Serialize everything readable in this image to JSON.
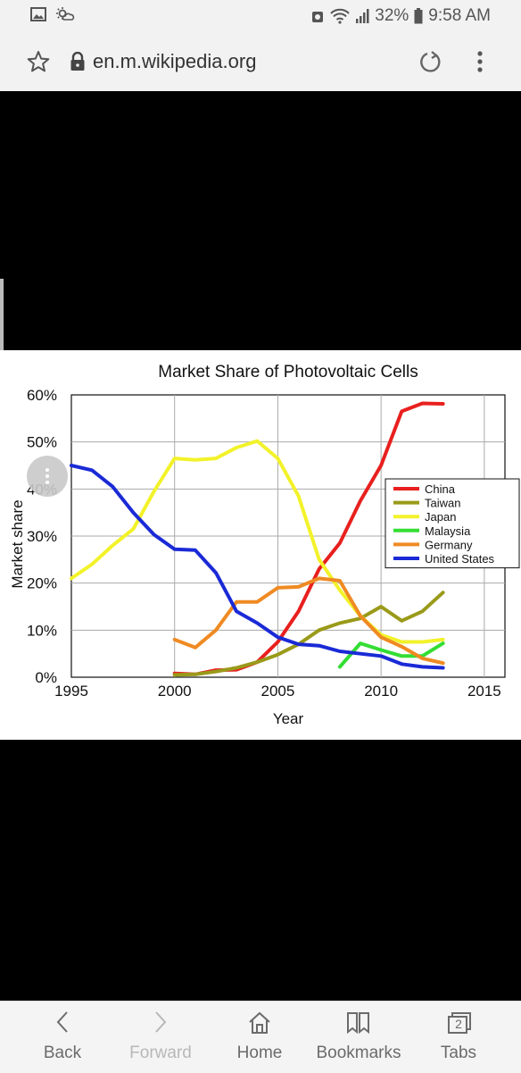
{
  "status": {
    "battery": "32%",
    "time": "9:58 AM"
  },
  "browser": {
    "url": "en.m.wikipedia.org"
  },
  "nav": {
    "back": "Back",
    "forward": "Forward",
    "home": "Home",
    "bookmarks": "Bookmarks",
    "tabs": "Tabs",
    "tab_count": "2"
  },
  "colors": {
    "china": "#e8201e",
    "taiwan": "#9a9a1a",
    "japan": "#f2f22a",
    "malaysia": "#33dd33",
    "germany": "#ef8a22",
    "united_states": "#1a2ad6"
  },
  "chart_data": {
    "type": "line",
    "title": "Market Share of Photovoltaic Cells",
    "xlabel": "Year",
    "ylabel": "Market share",
    "xlim": [
      1995,
      2016
    ],
    "ylim": [
      0,
      60
    ],
    "x_ticks": [
      "1995",
      "2000",
      "2005",
      "2010",
      "2015"
    ],
    "y_ticks": [
      "0%",
      "10%",
      "20%",
      "30%",
      "40%",
      "50%",
      "60%"
    ],
    "grid": true,
    "legend_position": "right",
    "series": [
      {
        "name": "China",
        "color": "#e8201e",
        "x": [
          2000,
          2001,
          2002,
          2003,
          2004,
          2005,
          2006,
          2007,
          2008,
          2009,
          2010,
          2011,
          2012,
          2013
        ],
        "y": [
          0.8,
          0.6,
          1.5,
          1.6,
          3.2,
          7.5,
          14,
          23,
          28.5,
          37.5,
          45,
          56.5,
          58.2,
          58.1
        ]
      },
      {
        "name": "Taiwan",
        "color": "#9a9a1a",
        "x": [
          2000,
          2001,
          2002,
          2003,
          2004,
          2005,
          2006,
          2007,
          2008,
          2009,
          2010,
          2011,
          2012,
          2013
        ],
        "y": [
          0.5,
          0.6,
          1.2,
          2.0,
          3.2,
          4.8,
          7.0,
          10.0,
          11.5,
          12.5,
          15.0,
          12.0,
          14.0,
          18.0
        ]
      },
      {
        "name": "Japan",
        "color": "#f2f22a",
        "x": [
          1995,
          1996,
          1997,
          1998,
          1999,
          2000,
          2001,
          2002,
          2003,
          2004,
          2005,
          2006,
          2007,
          2008,
          2009,
          2010,
          2011,
          2012,
          2013
        ],
        "y": [
          21,
          24,
          28,
          31.5,
          39.5,
          46.5,
          46.2,
          46.5,
          48.8,
          50.2,
          46.5,
          38.5,
          25,
          18.5,
          13,
          9,
          7.5,
          7.5,
          8
        ]
      },
      {
        "name": "Malaysia",
        "color": "#33dd33",
        "x": [
          2008,
          2009,
          2010,
          2011,
          2012,
          2013
        ],
        "y": [
          2.2,
          7.2,
          5.8,
          4.5,
          4.5,
          7.2
        ]
      },
      {
        "name": "Germany",
        "color": "#ef8a22",
        "x": [
          2000,
          2001,
          2002,
          2003,
          2004,
          2005,
          2006,
          2007,
          2008,
          2009,
          2010,
          2011,
          2012,
          2013
        ],
        "y": [
          8,
          6.3,
          10,
          16,
          16,
          19,
          19.2,
          21,
          20.5,
          13,
          8.5,
          6.5,
          4,
          3
        ]
      },
      {
        "name": "United States",
        "color": "#1a2ad6",
        "x": [
          1995,
          1996,
          1997,
          1998,
          1999,
          2000,
          2001,
          2002,
          2003,
          2004,
          2005,
          2006,
          2007,
          2008,
          2009,
          2010,
          2011,
          2012,
          2013
        ],
        "y": [
          45,
          44,
          40.5,
          35,
          30.3,
          27.2,
          27,
          22.2,
          14,
          11.5,
          8.5,
          7,
          6.7,
          5.5,
          5,
          4.5,
          2.8,
          2.2,
          2
        ]
      }
    ]
  }
}
